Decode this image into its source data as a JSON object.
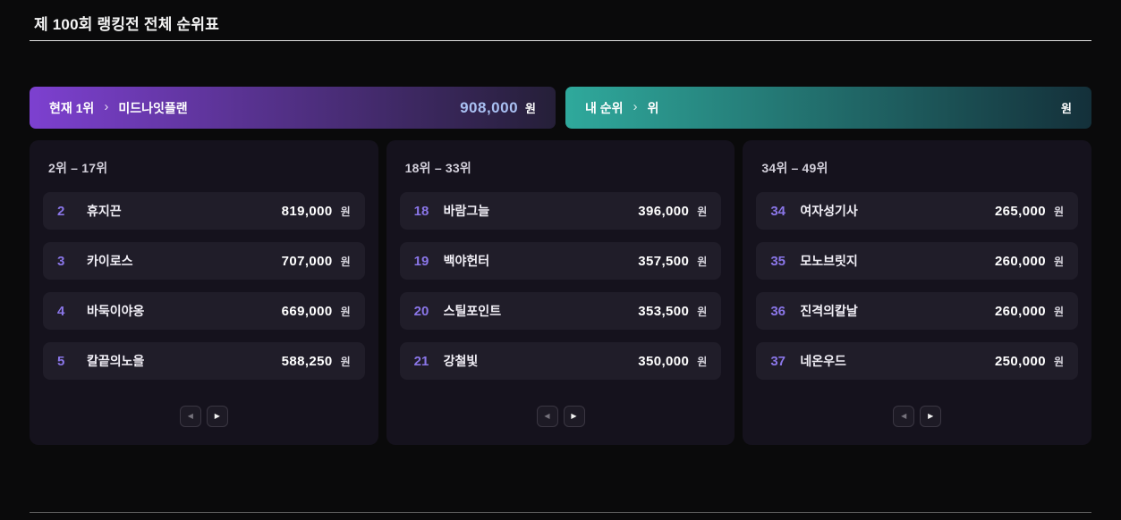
{
  "page": {
    "title": "제 100회 랭킹전 전체 순위표"
  },
  "icons": {
    "chevron_right": "›",
    "prev": "◀",
    "next": "▶"
  },
  "colors": {
    "leader_gradient_from": "#7d40d0",
    "leader_gradient_to": "#251f38",
    "leader_amount": "#a9c0f2",
    "myrank_gradient_from": "#2fa99c",
    "myrank_gradient_to": "#14303a",
    "rank_number": "#8a76e8"
  },
  "banners": {
    "leader": {
      "label": "현재 1위",
      "name": "미드나잇플랜",
      "amount": "908,000",
      "currency": "원"
    },
    "my_rank": {
      "label": "내 순위",
      "rank_text": "위",
      "amount": "",
      "currency": "원"
    }
  },
  "columns": [
    {
      "range_label": "2위 – 17위",
      "rows": [
        {
          "rank": "2",
          "name": "휴지끈",
          "amount": "819,000",
          "currency": "원"
        },
        {
          "rank": "3",
          "name": "카이로스",
          "amount": "707,000",
          "currency": "원"
        },
        {
          "rank": "4",
          "name": "바둑이야옹",
          "amount": "669,000",
          "currency": "원"
        },
        {
          "rank": "5",
          "name": "칼끝의노을",
          "amount": "588,250",
          "currency": "원"
        }
      ]
    },
    {
      "range_label": "18위 – 33위",
      "rows": [
        {
          "rank": "18",
          "name": "바람그늘",
          "amount": "396,000",
          "currency": "원"
        },
        {
          "rank": "19",
          "name": "백야헌터",
          "amount": "357,500",
          "currency": "원"
        },
        {
          "rank": "20",
          "name": "스틸포인트",
          "amount": "353,500",
          "currency": "원"
        },
        {
          "rank": "21",
          "name": "강철빛",
          "amount": "350,000",
          "currency": "원"
        }
      ]
    },
    {
      "range_label": "34위 – 49위",
      "rows": [
        {
          "rank": "34",
          "name": "여자성기사",
          "amount": "265,000",
          "currency": "원"
        },
        {
          "rank": "35",
          "name": "모노브릿지",
          "amount": "260,000",
          "currency": "원"
        },
        {
          "rank": "36",
          "name": "진격의칼날",
          "amount": "260,000",
          "currency": "원"
        },
        {
          "rank": "37",
          "name": "네온우드",
          "amount": "250,000",
          "currency": "원"
        }
      ]
    }
  ]
}
